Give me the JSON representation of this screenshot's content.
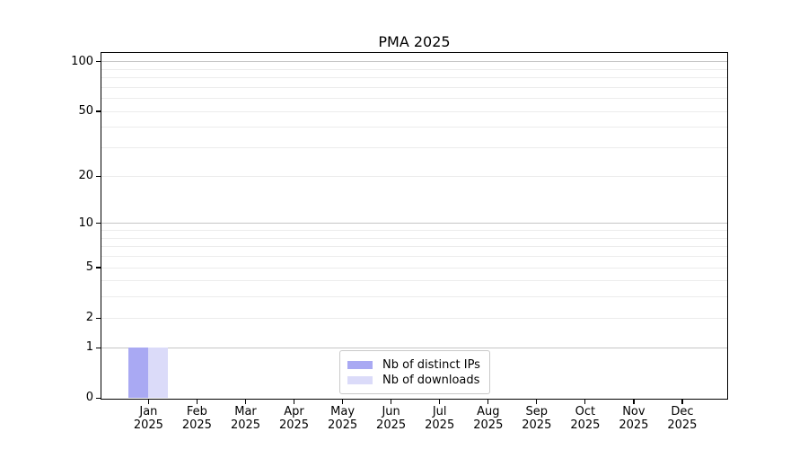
{
  "chart_data": {
    "type": "bar",
    "title": "PMA 2025",
    "xlabel": "",
    "ylabel": "",
    "categories": [
      "Jan 2025",
      "Feb 2025",
      "Mar 2025",
      "Apr 2025",
      "May 2025",
      "Jun 2025",
      "Jul 2025",
      "Aug 2025",
      "Sep 2025",
      "Oct 2025",
      "Nov 2025",
      "Dec 2025"
    ],
    "series": [
      {
        "name": "Nb of distinct IPs",
        "color": "#a9a9f3",
        "values": [
          1,
          0,
          0,
          0,
          0,
          0,
          0,
          0,
          0,
          0,
          0,
          0
        ]
      },
      {
        "name": "Nb of downloads",
        "color": "#dbdbf9",
        "values": [
          1,
          0,
          0,
          0,
          0,
          0,
          0,
          0,
          0,
          0,
          0,
          0
        ]
      }
    ],
    "y_axis": {
      "scale": "log1p",
      "ticks": [
        0,
        1,
        2,
        5,
        10,
        20,
        50,
        100
      ],
      "max": 112,
      "major_gridlines": [
        1,
        10,
        100
      ],
      "minor_gridlines": [
        2,
        3,
        4,
        5,
        6,
        7,
        8,
        9,
        20,
        30,
        40,
        50,
        60,
        70,
        80,
        90
      ]
    },
    "grid": true,
    "legend": {
      "position": "lower center"
    }
  },
  "colors": {
    "axis": "#000000",
    "major_grid": "#c6c6c6",
    "minor_grid": "#ececec",
    "legend_border": "#c9c9c9",
    "background": "#ffffff"
  }
}
